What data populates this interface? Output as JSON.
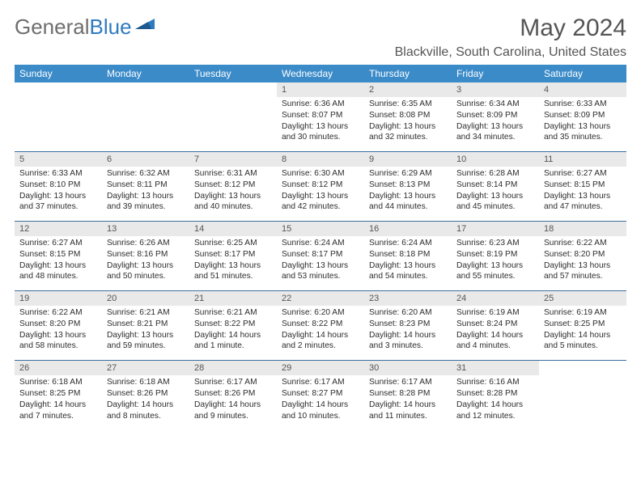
{
  "logo": {
    "text1": "General",
    "text2": "Blue"
  },
  "title": "May 2024",
  "location": "Blackville, South Carolina, United States",
  "colors": {
    "header_bg": "#3b8bc9",
    "header_text": "#ffffff",
    "daynum_bg": "#e9e9e9",
    "sep": "#3b6f9e",
    "title_color": "#555",
    "logo_gray": "#6e6e6e",
    "logo_blue": "#2f7bbf"
  },
  "day_names": [
    "Sunday",
    "Monday",
    "Tuesday",
    "Wednesday",
    "Thursday",
    "Friday",
    "Saturday"
  ],
  "weeks": [
    [
      null,
      null,
      null,
      {
        "n": "1",
        "sr": "6:36 AM",
        "ss": "8:07 PM",
        "dl": "13 hours and 30 minutes."
      },
      {
        "n": "2",
        "sr": "6:35 AM",
        "ss": "8:08 PM",
        "dl": "13 hours and 32 minutes."
      },
      {
        "n": "3",
        "sr": "6:34 AM",
        "ss": "8:09 PM",
        "dl": "13 hours and 34 minutes."
      },
      {
        "n": "4",
        "sr": "6:33 AM",
        "ss": "8:09 PM",
        "dl": "13 hours and 35 minutes."
      }
    ],
    [
      {
        "n": "5",
        "sr": "6:33 AM",
        "ss": "8:10 PM",
        "dl": "13 hours and 37 minutes."
      },
      {
        "n": "6",
        "sr": "6:32 AM",
        "ss": "8:11 PM",
        "dl": "13 hours and 39 minutes."
      },
      {
        "n": "7",
        "sr": "6:31 AM",
        "ss": "8:12 PM",
        "dl": "13 hours and 40 minutes."
      },
      {
        "n": "8",
        "sr": "6:30 AM",
        "ss": "8:12 PM",
        "dl": "13 hours and 42 minutes."
      },
      {
        "n": "9",
        "sr": "6:29 AM",
        "ss": "8:13 PM",
        "dl": "13 hours and 44 minutes."
      },
      {
        "n": "10",
        "sr": "6:28 AM",
        "ss": "8:14 PM",
        "dl": "13 hours and 45 minutes."
      },
      {
        "n": "11",
        "sr": "6:27 AM",
        "ss": "8:15 PM",
        "dl": "13 hours and 47 minutes."
      }
    ],
    [
      {
        "n": "12",
        "sr": "6:27 AM",
        "ss": "8:15 PM",
        "dl": "13 hours and 48 minutes."
      },
      {
        "n": "13",
        "sr": "6:26 AM",
        "ss": "8:16 PM",
        "dl": "13 hours and 50 minutes."
      },
      {
        "n": "14",
        "sr": "6:25 AM",
        "ss": "8:17 PM",
        "dl": "13 hours and 51 minutes."
      },
      {
        "n": "15",
        "sr": "6:24 AM",
        "ss": "8:17 PM",
        "dl": "13 hours and 53 minutes."
      },
      {
        "n": "16",
        "sr": "6:24 AM",
        "ss": "8:18 PM",
        "dl": "13 hours and 54 minutes."
      },
      {
        "n": "17",
        "sr": "6:23 AM",
        "ss": "8:19 PM",
        "dl": "13 hours and 55 minutes."
      },
      {
        "n": "18",
        "sr": "6:22 AM",
        "ss": "8:20 PM",
        "dl": "13 hours and 57 minutes."
      }
    ],
    [
      {
        "n": "19",
        "sr": "6:22 AM",
        "ss": "8:20 PM",
        "dl": "13 hours and 58 minutes."
      },
      {
        "n": "20",
        "sr": "6:21 AM",
        "ss": "8:21 PM",
        "dl": "13 hours and 59 minutes."
      },
      {
        "n": "21",
        "sr": "6:21 AM",
        "ss": "8:22 PM",
        "dl": "14 hours and 1 minute."
      },
      {
        "n": "22",
        "sr": "6:20 AM",
        "ss": "8:22 PM",
        "dl": "14 hours and 2 minutes."
      },
      {
        "n": "23",
        "sr": "6:20 AM",
        "ss": "8:23 PM",
        "dl": "14 hours and 3 minutes."
      },
      {
        "n": "24",
        "sr": "6:19 AM",
        "ss": "8:24 PM",
        "dl": "14 hours and 4 minutes."
      },
      {
        "n": "25",
        "sr": "6:19 AM",
        "ss": "8:25 PM",
        "dl": "14 hours and 5 minutes."
      }
    ],
    [
      {
        "n": "26",
        "sr": "6:18 AM",
        "ss": "8:25 PM",
        "dl": "14 hours and 7 minutes."
      },
      {
        "n": "27",
        "sr": "6:18 AM",
        "ss": "8:26 PM",
        "dl": "14 hours and 8 minutes."
      },
      {
        "n": "28",
        "sr": "6:17 AM",
        "ss": "8:26 PM",
        "dl": "14 hours and 9 minutes."
      },
      {
        "n": "29",
        "sr": "6:17 AM",
        "ss": "8:27 PM",
        "dl": "14 hours and 10 minutes."
      },
      {
        "n": "30",
        "sr": "6:17 AM",
        "ss": "8:28 PM",
        "dl": "14 hours and 11 minutes."
      },
      {
        "n": "31",
        "sr": "6:16 AM",
        "ss": "8:28 PM",
        "dl": "14 hours and 12 minutes."
      },
      null
    ]
  ],
  "labels": {
    "sunrise": "Sunrise:",
    "sunset": "Sunset:",
    "daylight": "Daylight:"
  }
}
